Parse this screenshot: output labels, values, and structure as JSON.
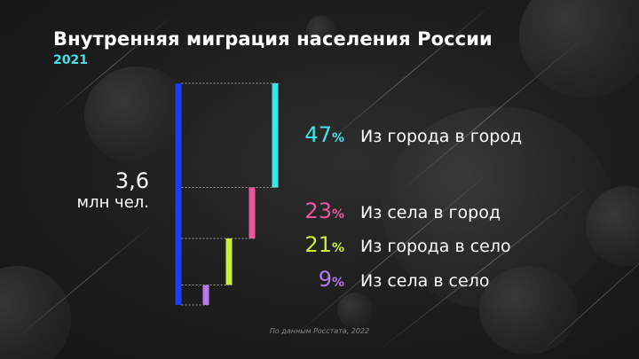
{
  "title": "Внутренняя миграция населения России",
  "year": "2021",
  "total": {
    "value": "3,6",
    "unit": "млн чел."
  },
  "source": "По данным Росстата, 2022",
  "chart_data": {
    "type": "bar",
    "title": "Внутренняя миграция населения России",
    "subtitle": "2021",
    "total_value": 3.6,
    "total_unit": "млн чел.",
    "total_color": "#1e3cf0",
    "series": [
      {
        "name": "Из города в город",
        "value": 47,
        "label": "47",
        "unit": "%",
        "color": "#3fe3e8"
      },
      {
        "name": "Из села в город",
        "value": 23,
        "label": "23",
        "unit": "%",
        "color": "#e8569e"
      },
      {
        "name": "Из города в село",
        "value": 21,
        "label": "21",
        "unit": "%",
        "color": "#c8f03a"
      },
      {
        "name": "Из села в село",
        "value": 9,
        "label": "9",
        "unit": "%",
        "color": "#b57aee"
      }
    ]
  }
}
